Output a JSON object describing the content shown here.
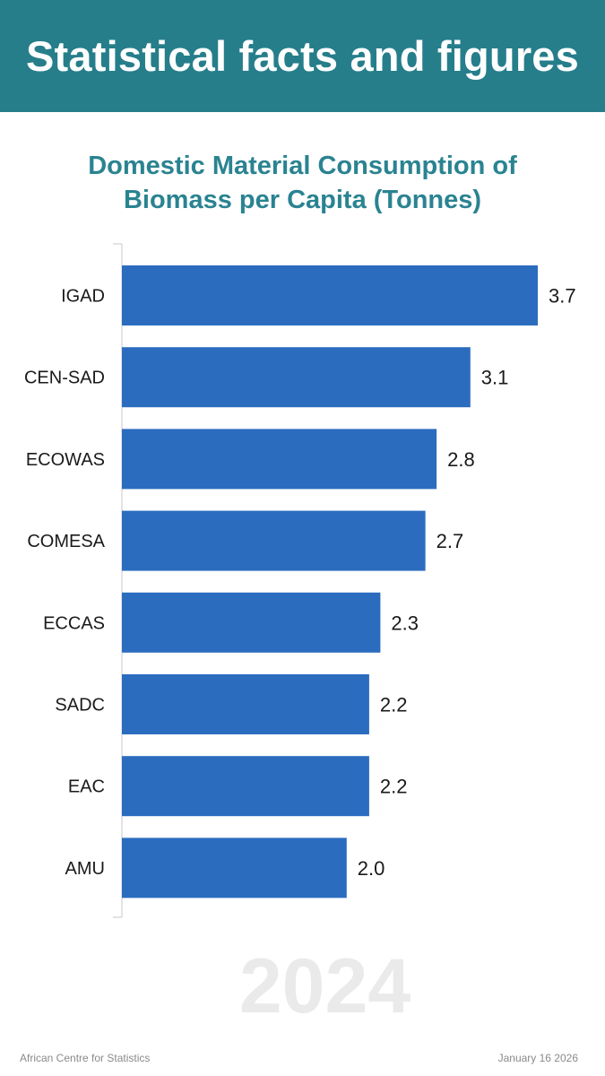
{
  "header": {
    "banner_title": "Statistical facts and figures"
  },
  "chart_data": {
    "type": "bar",
    "orientation": "horizontal",
    "title": "Domestic Material Consumption of Biomass per Capita (Tonnes)",
    "title_lines": [
      "Domestic Material Consumption of",
      "Biomass per Capita (Tonnes)"
    ],
    "categories": [
      "IGAD",
      "CEN-SAD",
      "ECOWAS",
      "COMESA",
      "ECCAS",
      "SADC",
      "EAC",
      "AMU"
    ],
    "values": [
      3.7,
      3.1,
      2.8,
      2.7,
      2.3,
      2.2,
      2.2,
      2.0
    ],
    "data_labels": [
      "3.7",
      "3.1",
      "2.8",
      "2.7",
      "2.3",
      "2.2",
      "2.2",
      "2.0"
    ],
    "xlabel": "",
    "ylabel": "",
    "xlim": [
      0,
      3.7
    ],
    "grid": false,
    "legend": "none",
    "bar_color": "#2b6cbf"
  },
  "year_label": "2024",
  "footer": {
    "source": "African Centre for Statistics",
    "date": "January 16 2026"
  },
  "colors": {
    "banner": "#267e8b",
    "title": "#2a8391",
    "bar": "#2b6cbf",
    "year": "#eaeaea",
    "footer_text": "#8a8a8a"
  }
}
